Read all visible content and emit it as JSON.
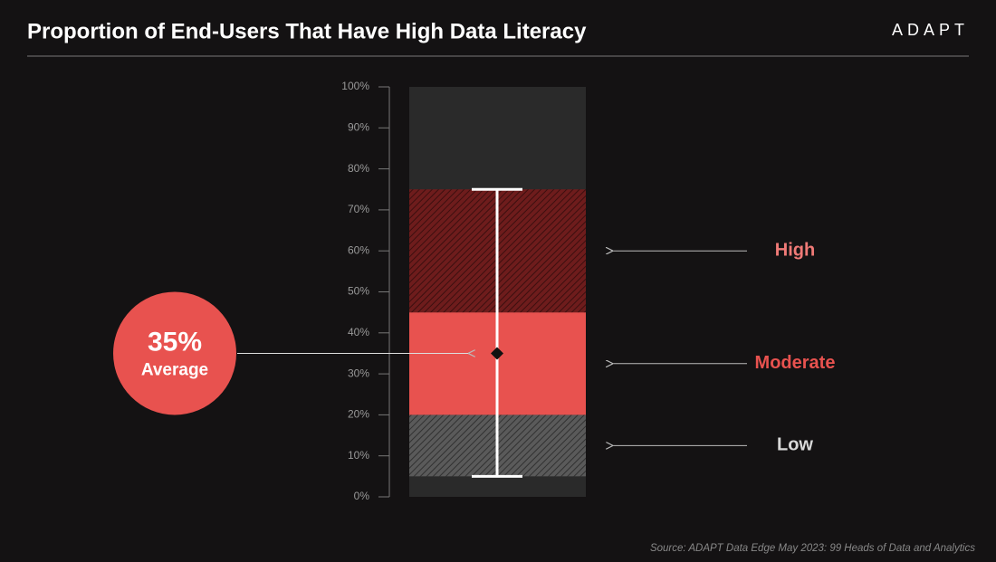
{
  "chart_data": {
    "type": "range-column",
    "title": "Proportion of End-Users That Have High Data Literacy",
    "logo": "ADAPT",
    "source": "Source: ADAPT Data Edge May 2023: 99 Heads of Data and Analytics",
    "ylim": [
      0,
      100
    ],
    "yticks": [
      {
        "value": 0,
        "label": "0%"
      },
      {
        "value": 10,
        "label": "10%"
      },
      {
        "value": 20,
        "label": "20%"
      },
      {
        "value": 30,
        "label": "30%"
      },
      {
        "value": 40,
        "label": "40%"
      },
      {
        "value": 50,
        "label": "50%"
      },
      {
        "value": 60,
        "label": "60%"
      },
      {
        "value": 70,
        "label": "70%"
      },
      {
        "value": 80,
        "label": "80%"
      },
      {
        "value": 90,
        "label": "90%"
      },
      {
        "value": 100,
        "label": "100%"
      }
    ],
    "bands": [
      {
        "name": "Low",
        "from": 5,
        "to": 20,
        "color": "#5a5a5a",
        "label_color": "#d8d8d8",
        "hatched": true
      },
      {
        "name": "Moderate",
        "from": 20,
        "to": 45,
        "color": "#e8524f",
        "label_color": "#e8524f",
        "hatched": false
      },
      {
        "name": "High",
        "from": 45,
        "to": 75,
        "color": "#6e1c1c",
        "label_color": "#f07a77",
        "hatched": true
      }
    ],
    "whisker": {
      "min": 5,
      "max": 75
    },
    "mean": {
      "value": 35,
      "label": "35%",
      "name": "Average",
      "color": "#e8524f"
    }
  }
}
